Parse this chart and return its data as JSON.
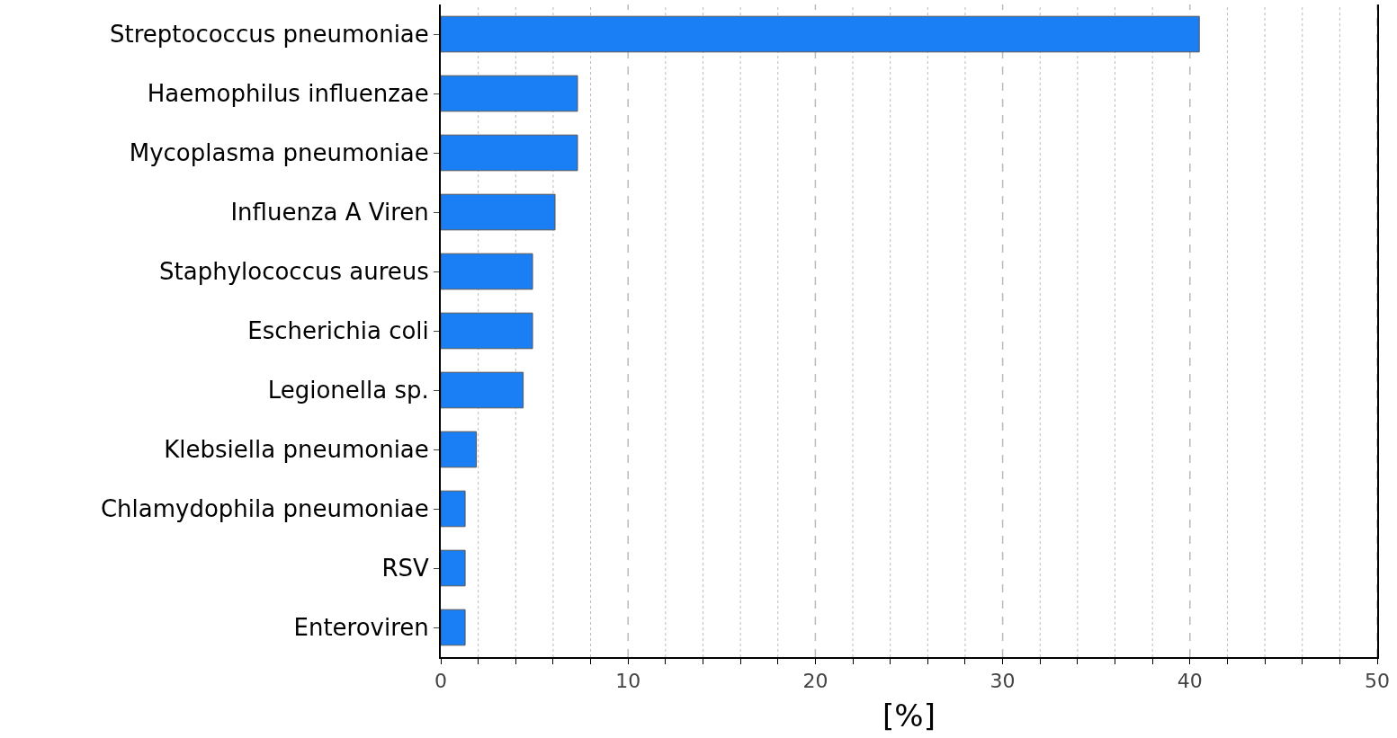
{
  "chart_data": {
    "type": "bar",
    "orientation": "horizontal",
    "xlabel": "[%]",
    "categories": [
      "Streptococcus pneumoniae",
      "Haemophilus influenzae",
      "Mycoplasma pneumoniae",
      "Influenza A Viren",
      "Staphylococcus aureus",
      "Escherichia coli",
      "Legionella sp.",
      "Klebsiella pneumoniae",
      "Chlamydophila pneumoniae",
      "RSV",
      "Enteroviren"
    ],
    "values": [
      40.5,
      7.3,
      7.3,
      6.1,
      4.9,
      4.9,
      4.4,
      1.9,
      1.3,
      1.3,
      1.3
    ],
    "color": "#1a7ef5",
    "xlim": [
      0,
      50
    ],
    "xticks": [
      0,
      {
        "value": 2,
        "label": null
      },
      {
        "value": 4,
        "label": null
      },
      {
        "value": 6,
        "label": null
      },
      {
        "value": 8,
        "label": null
      },
      10,
      {
        "value": 12,
        "label": null
      },
      {
        "value": 14,
        "label": null
      },
      {
        "value": 16,
        "label": null
      },
      {
        "value": 18,
        "label": null
      },
      20,
      {
        "value": 22,
        "label": null
      },
      {
        "value": 24,
        "label": null
      },
      {
        "value": 26,
        "label": null
      },
      {
        "value": 28,
        "label": null
      },
      30,
      {
        "value": 32,
        "label": null
      },
      {
        "value": 34,
        "label": null
      },
      {
        "value": 36,
        "label": null
      },
      {
        "value": 38,
        "label": null
      },
      40,
      {
        "value": 42,
        "label": null
      },
      {
        "value": 44,
        "label": null
      },
      {
        "value": 46,
        "label": null
      },
      {
        "value": 48,
        "label": null
      },
      50
    ],
    "grid": "x"
  }
}
